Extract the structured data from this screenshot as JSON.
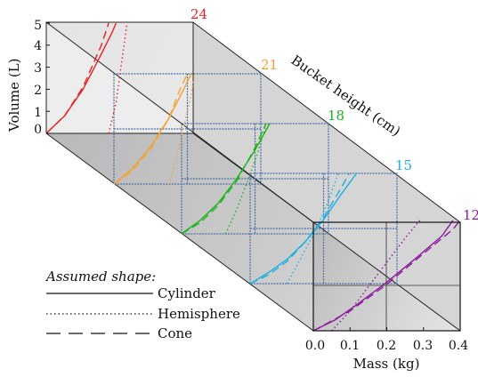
{
  "chart_data": {
    "type": "line",
    "title": "",
    "xlabel": "Mass (kg)",
    "ylabel": "Volume (L)",
    "zlabel": "Bucket height (cm)",
    "x_ticks": [
      "0.0",
      "0.1",
      "0.2",
      "0.3",
      "0.4"
    ],
    "y_ticks": [
      "0",
      "1",
      "2",
      "3",
      "4",
      "5"
    ],
    "xlim": [
      0,
      0.4
    ],
    "ylim": [
      0,
      5
    ],
    "grid": true,
    "legend_title": "Assumed shape:",
    "legend": [
      {
        "label": "Cylinder",
        "dash": "solid"
      },
      {
        "label": "Hemisphere",
        "dash": "dotted"
      },
      {
        "label": "Cone",
        "dash": "dashed"
      }
    ],
    "bucket_heights": [
      {
        "height": "12",
        "color": "#8b1a9e",
        "series": [
          {
            "shape": "Cylinder",
            "points": [
              [
                0.0,
                0
              ],
              [
                0.06,
                0.5
              ],
              [
                0.12,
                1.2
              ],
              [
                0.2,
                2.2
              ],
              [
                0.28,
                3.3
              ],
              [
                0.35,
                4.3
              ],
              [
                0.38,
                5.0
              ]
            ]
          },
          {
            "shape": "Hemisphere",
            "points": [
              [
                0.05,
                0
              ],
              [
                0.1,
                0.9
              ],
              [
                0.15,
                2.0
              ],
              [
                0.2,
                3.1
              ],
              [
                0.25,
                4.2
              ],
              [
                0.29,
                5.0
              ]
            ]
          },
          {
            "shape": "Cone",
            "points": [
              [
                0.0,
                0
              ],
              [
                0.1,
                0.9
              ],
              [
                0.2,
                2.1
              ],
              [
                0.3,
                3.5
              ],
              [
                0.38,
                4.6
              ],
              [
                0.4,
                5.0
              ]
            ]
          }
        ]
      },
      {
        "height": "15",
        "color": "#1ab0e0",
        "series": [
          {
            "shape": "Cylinder",
            "points": [
              [
                0.0,
                0
              ],
              [
                0.05,
                0.5
              ],
              [
                0.1,
                1.1
              ],
              [
                0.15,
                1.9
              ],
              [
                0.2,
                2.9
              ],
              [
                0.25,
                4.1
              ],
              [
                0.29,
                5.0
              ]
            ]
          },
          {
            "shape": "Hemisphere",
            "points": [
              [
                0.1,
                0
              ],
              [
                0.14,
                1.2
              ],
              [
                0.18,
                2.5
              ],
              [
                0.21,
                3.6
              ],
              [
                0.24,
                5.0
              ]
            ]
          },
          {
            "shape": "Cone",
            "points": [
              [
                0.0,
                0
              ],
              [
                0.05,
                0.4
              ],
              [
                0.1,
                1.0
              ],
              [
                0.15,
                1.9
              ],
              [
                0.2,
                3.0
              ],
              [
                0.25,
                4.4
              ],
              [
                0.27,
                5.0
              ]
            ]
          }
        ]
      },
      {
        "height": "18",
        "color": "#1bb31b",
        "series": [
          {
            "shape": "Cylinder",
            "points": [
              [
                0.0,
                0
              ],
              [
                0.05,
                0.6
              ],
              [
                0.1,
                1.4
              ],
              [
                0.15,
                2.5
              ],
              [
                0.2,
                3.8
              ],
              [
                0.24,
                5.0
              ]
            ]
          },
          {
            "shape": "Hemisphere",
            "points": [
              [
                0.12,
                0
              ],
              [
                0.15,
                1.1
              ],
              [
                0.18,
                2.4
              ],
              [
                0.21,
                3.8
              ],
              [
                0.23,
                5.0
              ]
            ]
          },
          {
            "shape": "Cone",
            "points": [
              [
                0.0,
                0
              ],
              [
                0.05,
                0.5
              ],
              [
                0.1,
                1.3
              ],
              [
                0.15,
                2.4
              ],
              [
                0.2,
                3.9
              ],
              [
                0.23,
                5.0
              ]
            ]
          }
        ]
      },
      {
        "height": "21",
        "color": "#f5a030",
        "series": [
          {
            "shape": "Cylinder",
            "points": [
              [
                0.0,
                0
              ],
              [
                0.05,
                0.7
              ],
              [
                0.1,
                1.7
              ],
              [
                0.15,
                3.0
              ],
              [
                0.19,
                4.3
              ],
              [
                0.21,
                5.0
              ]
            ]
          },
          {
            "shape": "Hemisphere",
            "points": [
              [
                0.15,
                0
              ],
              [
                0.17,
                1.2
              ],
              [
                0.19,
                2.6
              ],
              [
                0.21,
                4.0
              ],
              [
                0.22,
                5.0
              ]
            ]
          },
          {
            "shape": "Cone",
            "points": [
              [
                0.0,
                0
              ],
              [
                0.05,
                0.6
              ],
              [
                0.1,
                1.6
              ],
              [
                0.15,
                3.0
              ],
              [
                0.18,
                4.3
              ],
              [
                0.2,
                5.0
              ]
            ]
          }
        ]
      },
      {
        "height": "24",
        "color": "#e62020",
        "series": [
          {
            "shape": "Cylinder",
            "points": [
              [
                0.0,
                0
              ],
              [
                0.05,
                0.8
              ],
              [
                0.1,
                2.0
              ],
              [
                0.15,
                3.6
              ],
              [
                0.18,
                4.6
              ],
              [
                0.19,
                5.0
              ]
            ]
          },
          {
            "shape": "Hemisphere",
            "points": [
              [
                0.17,
                0
              ],
              [
                0.19,
                1.4
              ],
              [
                0.2,
                2.6
              ],
              [
                0.21,
                3.8
              ],
              [
                0.22,
                5.0
              ]
            ]
          },
          {
            "shape": "Cone",
            "points": [
              [
                0.0,
                0
              ],
              [
                0.05,
                0.8
              ],
              [
                0.1,
                2.1
              ],
              [
                0.15,
                4.0
              ],
              [
                0.17,
                5.0
              ]
            ]
          }
        ]
      }
    ]
  }
}
